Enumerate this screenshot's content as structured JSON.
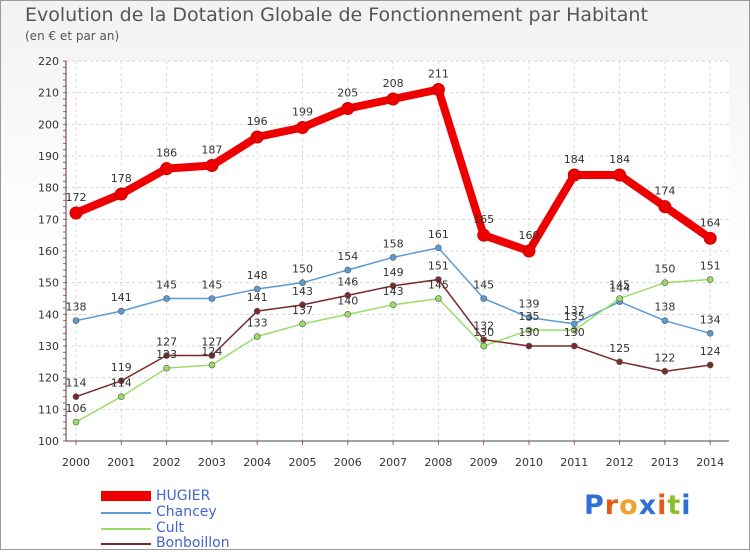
{
  "title": "Evolution de la Dotation Globale de Fonctionnement par Habitant",
  "subtitle": "(en € et par an)",
  "logo": {
    "text": "Proxiti",
    "letters": [
      "P",
      "r",
      "o",
      "x",
      "i",
      "t",
      "i"
    ],
    "colors": [
      "#2f6fd6",
      "#e65a16",
      "#f0a12a",
      "#2f6fd6",
      "#e65a16",
      "#8bbf2a",
      "#2f6fd6"
    ]
  },
  "chart_data": {
    "type": "line",
    "title": "Evolution de la Dotation Globale de Fonctionnement par Habitant",
    "subtitle": "(en € et par an)",
    "xlabel": "",
    "ylabel": "",
    "ylim": [
      100,
      220
    ],
    "yticks": [
      100,
      110,
      120,
      130,
      140,
      150,
      160,
      170,
      180,
      190,
      200,
      210,
      220
    ],
    "grid": true,
    "legend": "bottom-left",
    "categories": [
      "2000",
      "2001",
      "2002",
      "2003",
      "2004",
      "2005",
      "2006",
      "2007",
      "2008",
      "2009",
      "2010",
      "2011",
      "2012",
      "2013",
      "2014"
    ],
    "series": [
      {
        "name": "HUGIER",
        "color": "#ee0000",
        "emphasis": true,
        "values": [
          172,
          178,
          186,
          187,
          196,
          199,
          205,
          208,
          211,
          165,
          160,
          184,
          184,
          174,
          164
        ]
      },
      {
        "name": "Chancey",
        "color": "#5b9bd5",
        "emphasis": false,
        "values": [
          138,
          141,
          145,
          145,
          148,
          150,
          154,
          158,
          161,
          145,
          139,
          137,
          144,
          138,
          134
        ]
      },
      {
        "name": "Cult",
        "color": "#99dd66",
        "emphasis": false,
        "values": [
          106,
          114,
          123,
          124,
          133,
          137,
          140,
          143,
          145,
          130,
          135,
          135,
          145,
          150,
          151
        ]
      },
      {
        "name": "Bonboillon",
        "color": "#7a2a2a",
        "emphasis": false,
        "values": [
          114,
          119,
          127,
          127,
          141,
          143,
          146,
          149,
          151,
          132,
          130,
          130,
          125,
          122,
          124
        ]
      }
    ]
  }
}
